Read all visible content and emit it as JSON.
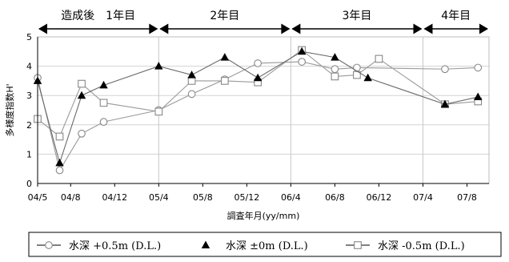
{
  "chart_data": {
    "type": "line",
    "xlabel": "調査年月(yy/mm)",
    "ylabel": "多様度指数H'",
    "ylim": [
      0,
      5
    ],
    "y_ticks": [
      "0",
      "1",
      "2",
      "3",
      "4",
      "5"
    ],
    "x_range": [
      "2004-05",
      "2007-10"
    ],
    "x_ticks": [
      {
        "label": "04/5",
        "date": "2004-05"
      },
      {
        "label": "04/8",
        "date": "2004-08"
      },
      {
        "label": "04/12",
        "date": "2004-12"
      },
      {
        "label": "05/4",
        "date": "2005-04"
      },
      {
        "label": "05/8",
        "date": "2005-08"
      },
      {
        "label": "05/12",
        "date": "2005-12"
      },
      {
        "label": "06/4",
        "date": "2006-04"
      },
      {
        "label": "06/8",
        "date": "2006-08"
      },
      {
        "label": "06/12",
        "date": "2006-12"
      },
      {
        "label": "07/4",
        "date": "2007-04"
      },
      {
        "label": "07/8",
        "date": "2007-08"
      }
    ],
    "period_dividers": [
      "2005-04",
      "2006-04",
      "2007-04"
    ],
    "periods": [
      {
        "label": "造成後　1年目",
        "start": "2004-05",
        "end": "2005-04"
      },
      {
        "label": "2年目",
        "start": "2005-04",
        "end": "2006-04"
      },
      {
        "label": "3年目",
        "start": "2006-04",
        "end": "2007-04"
      },
      {
        "label": "4年目",
        "start": "2007-04",
        "end": "2007-10"
      }
    ],
    "grid": {
      "horizontal": true,
      "vertical": false
    },
    "legend_position": "bottom",
    "series": [
      {
        "name": "水深 +0.5m (D.L.)",
        "legend_symbol": "—○—",
        "marker": "circle-open",
        "points": [
          {
            "date": "2004-05",
            "y": 3.6
          },
          {
            "date": "2004-07",
            "y": 0.45
          },
          {
            "date": "2004-09",
            "y": 1.7
          },
          {
            "date": "2004-11",
            "y": 2.1
          },
          {
            "date": "2005-04",
            "y": 2.5
          },
          {
            "date": "2005-07",
            "y": 3.05
          },
          {
            "date": "2005-10",
            "y": 3.55
          },
          {
            "date": "2006-01",
            "y": 4.1
          },
          {
            "date": "2006-05",
            "y": 4.15
          },
          {
            "date": "2006-08",
            "y": 3.9
          },
          {
            "date": "2006-10",
            "y": 3.95
          },
          {
            "date": "2007-06",
            "y": 3.9
          },
          {
            "date": "2007-09",
            "y": 3.95
          }
        ]
      },
      {
        "name": "水深 ±0m (D.L.)",
        "legend_symbol": "▲",
        "marker": "triangle-filled",
        "points": [
          {
            "date": "2004-05",
            "y": 3.5
          },
          {
            "date": "2004-07",
            "y": 0.7
          },
          {
            "date": "2004-09",
            "y": 3.0
          },
          {
            "date": "2004-11",
            "y": 3.35
          },
          {
            "date": "2005-04",
            "y": 4.0
          },
          {
            "date": "2005-07",
            "y": 3.7
          },
          {
            "date": "2005-10",
            "y": 4.3
          },
          {
            "date": "2006-01",
            "y": 3.6
          },
          {
            "date": "2006-05",
            "y": 4.5
          },
          {
            "date": "2006-08",
            "y": 4.3
          },
          {
            "date": "2006-11",
            "y": 3.6
          },
          {
            "date": "2007-06",
            "y": 2.7
          },
          {
            "date": "2007-09",
            "y": 2.95
          }
        ]
      },
      {
        "name": "水深 -0.5m (D.L.)",
        "legend_symbol": "—□—",
        "marker": "square-open",
        "points": [
          {
            "date": "2004-05",
            "y": 2.2
          },
          {
            "date": "2004-07",
            "y": 1.6
          },
          {
            "date": "2004-09",
            "y": 3.4
          },
          {
            "date": "2004-11",
            "y": 2.75
          },
          {
            "date": "2005-04",
            "y": 2.45
          },
          {
            "date": "2005-07",
            "y": 3.5
          },
          {
            "date": "2005-10",
            "y": 3.5
          },
          {
            "date": "2006-01",
            "y": 3.45
          },
          {
            "date": "2006-05",
            "y": 4.55
          },
          {
            "date": "2006-08",
            "y": 3.65
          },
          {
            "date": "2006-10",
            "y": 3.7
          },
          {
            "date": "2006-12",
            "y": 4.25
          },
          {
            "date": "2007-06",
            "y": 2.7
          },
          {
            "date": "2007-09",
            "y": 2.8
          }
        ]
      }
    ]
  }
}
